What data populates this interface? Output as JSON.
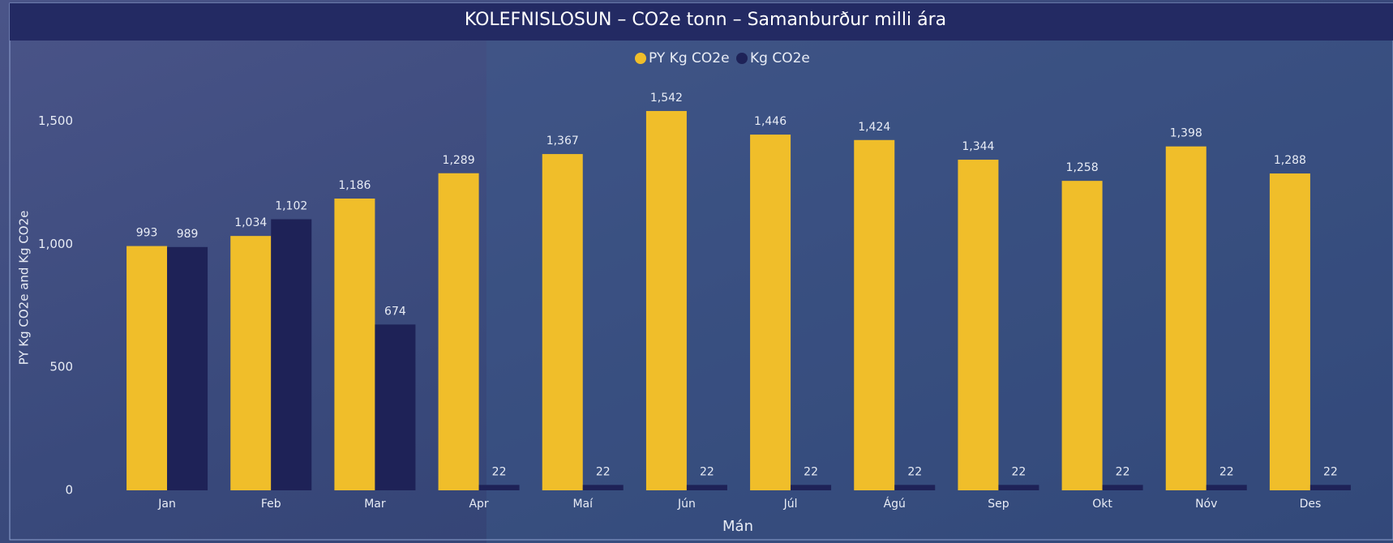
{
  "chart_data": {
    "type": "bar",
    "title": "KOLEFNISLOSUN – CO2e tonn – Samanburður milli ára",
    "x_label": "Mán",
    "y_label": "PY Kg CO2e and Kg CO2e",
    "categories": [
      "Jan",
      "Feb",
      "Mar",
      "Apr",
      "Maí",
      "Jún",
      "Júl",
      "Ágú",
      "Sep",
      "Okt",
      "Nóv",
      "Des"
    ],
    "series": [
      {
        "name": "PY Kg CO2e",
        "color": "#f0be2a",
        "values": [
          993,
          1034,
          1186,
          1289,
          1367,
          1542,
          1446,
          1424,
          1344,
          1258,
          1398,
          1288
        ],
        "value_labels": [
          "993",
          "1,034",
          "1,186",
          "1,289",
          "1,367",
          "1,542",
          "1,446",
          "1,424",
          "1,344",
          "1,258",
          "1,398",
          "1,288"
        ]
      },
      {
        "name": "Kg CO2e",
        "color": "#1e2257",
        "values": [
          989,
          1102,
          674,
          22,
          22,
          22,
          22,
          22,
          22,
          22,
          22,
          22
        ],
        "value_labels": [
          "989",
          "1,102",
          "674",
          "22",
          "22",
          "22",
          "22",
          "22",
          "22",
          "22",
          "22",
          "22"
        ]
      }
    ],
    "ylim": [
      0,
      1700
    ],
    "yticks": [
      0,
      500,
      {
        "value": 1000,
        "label": "1,000"
      },
      {
        "value": 1500,
        "label": "1,500"
      }
    ],
    "legend": "top-center"
  }
}
